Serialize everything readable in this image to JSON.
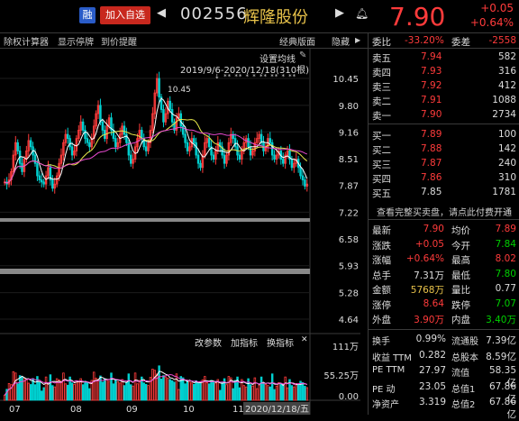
{
  "header": {
    "rong_label": "融",
    "add_fav_label": "加入自选",
    "stock_code": "002556",
    "stock_name": "辉隆股份",
    "price": "7.90",
    "change": "+0.05",
    "change_pct": "+0.64%"
  },
  "toolbar": {
    "items": [
      "除权计算器",
      "显示停牌",
      "到价提醒"
    ],
    "classic_label": "经典版面",
    "hide_label": "隐藏"
  },
  "chart": {
    "ma_button": "设置均线",
    "date_range": "2019/9/6-2020/12/18(310根)",
    "max_marker": "10.45",
    "price_ticks": [
      "10.45",
      "9.80",
      "9.16",
      "8.51",
      "7.87",
      "7.22",
      "6.58",
      "5.93",
      "5.28",
      "4.64"
    ],
    "vol_buttons": [
      "改参数",
      "加指标",
      "换指标"
    ],
    "vol_ticks": [
      "111万",
      "55.25万",
      "0.00"
    ],
    "x_labels": [
      "07",
      "08",
      "09",
      "10",
      "11",
      "2020/12/18/五"
    ]
  },
  "order_book": {
    "wei_bi_label": "委比",
    "wei_bi": "-33.20%",
    "wei_cha_label": "委差",
    "wei_cha": "-2558",
    "asks": [
      {
        "label": "卖五",
        "price": "7.94",
        "vol": "582"
      },
      {
        "label": "卖四",
        "price": "7.93",
        "vol": "316"
      },
      {
        "label": "卖三",
        "price": "7.92",
        "vol": "412"
      },
      {
        "label": "卖二",
        "price": "7.91",
        "vol": "1088"
      },
      {
        "label": "卖一",
        "price": "7.90",
        "vol": "2734"
      }
    ],
    "bids": [
      {
        "label": "买一",
        "price": "7.89",
        "vol": "100"
      },
      {
        "label": "买二",
        "price": "7.88",
        "vol": "142"
      },
      {
        "label": "买三",
        "price": "7.87",
        "vol": "240"
      },
      {
        "label": "买四",
        "price": "7.86",
        "vol": "310"
      },
      {
        "label": "买五",
        "price": "7.85",
        "vol": "1781"
      }
    ],
    "full_link": "查看完整买卖盘，请点此",
    "full_link_action": "付费开通"
  },
  "stats": [
    {
      "l1": "最新",
      "v1": "7.90",
      "c1": "red",
      "l2": "均价",
      "v2": "7.89",
      "c2": "red"
    },
    {
      "l1": "涨跌",
      "v1": "+0.05",
      "c1": "red",
      "l2": "今开",
      "v2": "7.84",
      "c2": "grn"
    },
    {
      "l1": "涨幅",
      "v1": "+0.64%",
      "c1": "red",
      "l2": "最高",
      "v2": "8.02",
      "c2": "red"
    },
    {
      "l1": "总手",
      "v1": "7.31万",
      "c1": "wht",
      "l2": "最低",
      "v2": "7.80",
      "c2": "grn"
    },
    {
      "l1": "金额",
      "v1": "5768万",
      "c1": "yel",
      "l2": "量比",
      "v2": "0.77",
      "c2": "wht"
    },
    {
      "l1": "涨停",
      "v1": "8.64",
      "c1": "red",
      "l2": "跌停",
      "v2": "7.07",
      "c2": "grn"
    },
    {
      "l1": "外盘",
      "v1": "3.90万",
      "c1": "red",
      "l2": "内盘",
      "v2": "3.40万",
      "c2": "grn"
    }
  ],
  "fundamentals": [
    {
      "l1": "换手",
      "v1": "0.99%",
      "l2": "流通股",
      "v2": "7.39亿"
    },
    {
      "l1": "收益 TTM",
      "v1": "0.282",
      "l2": "总股本",
      "v2": "8.59亿"
    },
    {
      "l1": "PE TTM",
      "v1": "27.97",
      "l2": "流值",
      "v2": "58.35亿"
    },
    {
      "l1": "PE 动",
      "v1": "23.05",
      "l2": "总值1",
      "v2": "67.86亿"
    },
    {
      "l1": "净资产",
      "v1": "3.319",
      "l2": "总值2",
      "v2": "67.86亿"
    }
  ],
  "colors": {
    "up": "#ff3b3b",
    "down": "#00d0d0",
    "ma5": "#ffffff",
    "ma20": "#e8e84a",
    "ma60": "#e84ad0"
  }
}
